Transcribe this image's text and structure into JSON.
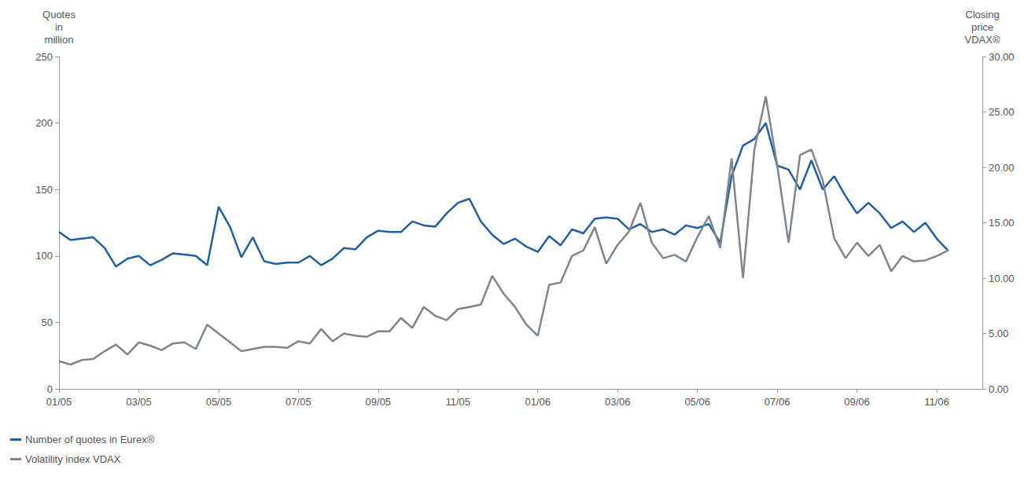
{
  "chart_data": {
    "type": "line",
    "y_label": "Quotes in million",
    "y2_label": "Closing price VDAX®",
    "x": [
      "01/05",
      null,
      null,
      null,
      null,
      null,
      null,
      "03/05",
      null,
      null,
      null,
      null,
      null,
      null,
      "05/05",
      null,
      null,
      null,
      null,
      null,
      null,
      "07/05",
      null,
      null,
      null,
      null,
      null,
      null,
      "09/05",
      null,
      null,
      null,
      null,
      null,
      null,
      "11/05",
      null,
      null,
      null,
      null,
      null,
      null,
      "01/06",
      null,
      null,
      null,
      null,
      null,
      null,
      "03/06",
      null,
      null,
      null,
      null,
      null,
      null,
      "05/06",
      null,
      null,
      null,
      null,
      null,
      null,
      "07/06",
      null,
      null,
      null,
      null,
      null,
      null,
      "09/06",
      null,
      null,
      null,
      null,
      null,
      null,
      "11/06",
      null,
      null,
      null,
      null
    ],
    "series": [
      {
        "name": "Number of quotes in Eurex®",
        "color": "#1f5fa6",
        "axis": "y",
        "values": [
          118,
          112,
          113,
          114,
          106,
          92,
          98,
          100,
          93,
          97,
          102,
          101,
          100,
          93,
          137,
          122,
          99,
          114,
          96,
          94,
          95,
          95,
          100,
          93,
          98,
          106,
          105,
          114,
          119,
          118,
          118,
          126,
          123,
          122,
          132,
          140,
          143,
          126,
          116,
          109,
          113,
          107,
          103,
          115,
          108,
          120,
          117,
          128,
          129,
          128,
          120,
          124,
          118,
          120,
          116,
          123,
          121,
          124,
          110,
          160,
          183,
          188,
          200,
          168,
          165,
          150,
          172,
          150,
          160,
          145,
          132,
          140,
          132,
          121,
          126,
          118,
          125,
          113,
          104,
          null,
          null,
          null
        ]
      },
      {
        "name": "Volatility index VDAX",
        "color": "#7d858d",
        "axis": "y2",
        "values": [
          2.5,
          2.2,
          2.6,
          2.7,
          3.4,
          4.0,
          3.1,
          4.2,
          3.9,
          3.5,
          4.1,
          4.2,
          3.6,
          5.8,
          5.0,
          4.2,
          3.4,
          3.6,
          3.8,
          3.8,
          3.7,
          4.3,
          4.1,
          5.4,
          4.3,
          5.0,
          4.8,
          4.7,
          5.2,
          5.2,
          6.4,
          5.5,
          7.4,
          6.6,
          6.2,
          7.2,
          7.4,
          7.6,
          10.2,
          8.6,
          7.4,
          5.8,
          4.8,
          9.4,
          9.6,
          12.0,
          12.5,
          14.6,
          11.3,
          13.0,
          14.2,
          16.8,
          13.2,
          11.8,
          12.1,
          11.5,
          13.7,
          15.6,
          12.7,
          20.8,
          10.0,
          21.6,
          26.4,
          20.2,
          13.2,
          21.1,
          21.6,
          18.8,
          13.6,
          11.8,
          13.2,
          12.0,
          13.0,
          10.6,
          12.0,
          11.5,
          11.6,
          12.0,
          12.5,
          null,
          null,
          null
        ]
      }
    ],
    "ylim": [
      0,
      250
    ],
    "yticks": [
      0,
      50,
      100,
      150,
      200,
      250
    ],
    "y2lim": [
      0,
      30
    ],
    "y2ticks": [
      {
        "value": 0,
        "label": "0.00"
      },
      {
        "value": 5,
        "label": "5.00"
      },
      {
        "value": 10,
        "label": "10.00"
      },
      {
        "value": 15,
        "label": "15.00"
      },
      {
        "value": 20,
        "label": "20.00"
      },
      {
        "value": 25,
        "label": "25.00"
      },
      {
        "value": 30,
        "label": "30.00"
      }
    ],
    "legend": "bottom-left",
    "grid": false
  }
}
